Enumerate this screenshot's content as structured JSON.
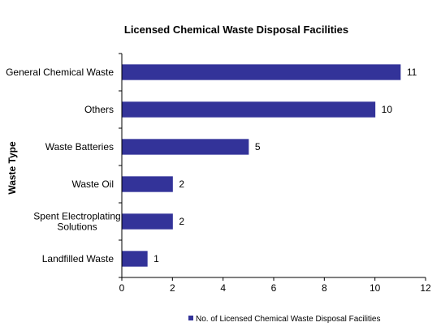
{
  "chart_data": {
    "type": "bar",
    "orientation": "horizontal",
    "title": "Licensed  Chemical Waste Disposal  Facilities",
    "ylabel": "Waste Type",
    "xlabel": "",
    "categories": [
      "General Chemical Waste",
      "Others",
      "Waste Batteries",
      "Waste Oil",
      "Spent Electroplating Solutions",
      "Landfilled Waste"
    ],
    "category_lines": [
      [
        "General Chemical Waste"
      ],
      [
        "Others"
      ],
      [
        "Waste Batteries"
      ],
      [
        "Waste Oil"
      ],
      [
        "Spent Electroplating",
        "Solutions"
      ],
      [
        "Landfilled Waste"
      ]
    ],
    "series": [
      {
        "name": "No. of Licensed Chemical Waste Disposal Facilities",
        "values": [
          11,
          10,
          5,
          2,
          2,
          1
        ],
        "color": "#333399"
      }
    ],
    "xlim": [
      0,
      12
    ],
    "xticks": [
      0,
      2,
      4,
      6,
      8,
      10,
      12
    ],
    "grid": false,
    "data_labels": true,
    "legend_position": "bottom"
  }
}
